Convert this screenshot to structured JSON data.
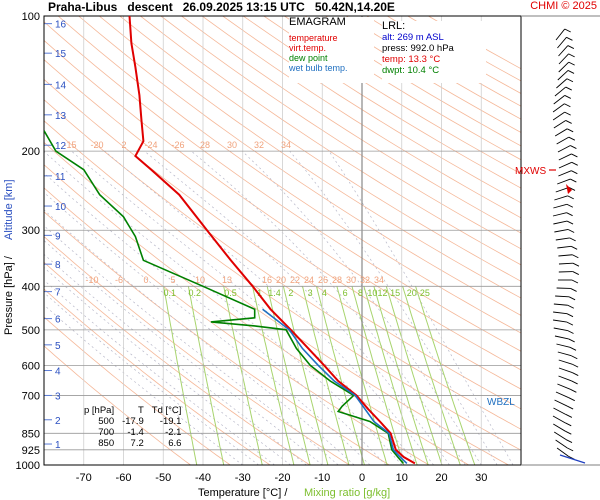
{
  "header": {
    "station": "Praha-Libus",
    "mode": "descent",
    "datetime": "26.09.2025 13:15 UTC",
    "coords": "50.42N,14.20E",
    "copyright": "CHMI © 2025"
  },
  "legend": {
    "title": "EMAGRAM",
    "items": [
      {
        "label": "temperature",
        "color": "#e00000"
      },
      {
        "label": "virt.temp.",
        "color": "#e00000"
      },
      {
        "label": "dew point",
        "color": "#008000"
      },
      {
        "label": "wet bulb temp.",
        "color": "#1f6fc0"
      }
    ]
  },
  "lrl": {
    "title": "LRL:",
    "lines": [
      {
        "text": "alt: 269 m ASL",
        "color": "#0000cc"
      },
      {
        "text": "press: 992.0 hPa",
        "color": "#000000"
      },
      {
        "text": "temp: 13.3 °C",
        "color": "#e00000"
      },
      {
        "text": "dwpt: 10.4 °C",
        "color": "#008000"
      }
    ]
  },
  "table": {
    "headers": [
      "p [hPa]",
      "T",
      "Td [°C]"
    ],
    "rows": [
      [
        "500",
        "-17.9",
        "-19.1"
      ],
      [
        "700",
        "-1.4",
        "-2.1"
      ],
      [
        "850",
        "7.2",
        "6.6"
      ]
    ]
  },
  "wind_labels": {
    "mxws": "MXWS",
    "wbzl": "WBZL"
  },
  "chart_data": {
    "type": "line",
    "diagram": "emagram",
    "xlabel": "Temperature [°C]",
    "xlabel2": "Mixing ratio [g/kg]",
    "ylabel": "Pressure [hPa]",
    "ylabel2": "Altitude [km]",
    "xlim": [
      -80,
      40
    ],
    "ylim": [
      1000,
      100
    ],
    "y_scale": "log",
    "x_ticks": [
      -70,
      -60,
      -50,
      -40,
      -30,
      -20,
      -10,
      0,
      10,
      20,
      30
    ],
    "pressure_ticks": [
      100,
      200,
      300,
      400,
      500,
      600,
      700,
      850,
      925,
      1000
    ],
    "altitude_ticks": [
      {
        "km": 1,
        "p": 898
      },
      {
        "km": 2,
        "p": 793
      },
      {
        "km": 3,
        "p": 700
      },
      {
        "km": 4,
        "p": 616
      },
      {
        "km": 5,
        "p": 540
      },
      {
        "km": 6,
        "p": 472
      },
      {
        "km": 7,
        "p": 411
      },
      {
        "km": 8,
        "p": 357
      },
      {
        "km": 9,
        "p": 308
      },
      {
        "km": 10,
        "p": 265
      },
      {
        "km": 11,
        "p": 227
      },
      {
        "km": 12,
        "p": 194
      },
      {
        "km": 13,
        "p": 166
      },
      {
        "km": 14,
        "p": 142
      },
      {
        "km": 15,
        "p": 121
      },
      {
        "km": 16,
        "p": 104
      }
    ],
    "mixing_ratio_labels": [
      "0.1",
      "0.2",
      "0.5",
      "1",
      "1.4",
      "2",
      "3",
      "4",
      "6",
      "8",
      "10",
      "12",
      "15",
      "20",
      "25"
    ],
    "isotherm_labels_upper": [
      "-15",
      "-20",
      "2",
      "-24",
      "-26",
      "28",
      "30",
      "32",
      "34"
    ],
    "isotherm_labels_mid": [
      "-10",
      "-6",
      "0",
      "5",
      "10",
      "13",
      "16",
      "20",
      "22",
      "24",
      "26",
      "28",
      "30",
      "32",
      "34"
    ],
    "series": [
      {
        "name": "temperature",
        "color": "#e00000",
        "points": [
          [
            13.3,
            992
          ],
          [
            10.5,
            960
          ],
          [
            8.5,
            925
          ],
          [
            7.2,
            850
          ],
          [
            4.5,
            800
          ],
          [
            1.5,
            750
          ],
          [
            -1.4,
            700
          ],
          [
            -6,
            650
          ],
          [
            -9.5,
            600
          ],
          [
            -13.5,
            550
          ],
          [
            -17.9,
            500
          ],
          [
            -23,
            450
          ],
          [
            -27.5,
            400
          ],
          [
            -33,
            350
          ],
          [
            -39,
            300
          ],
          [
            -46,
            250
          ],
          [
            -53,
            220
          ],
          [
            -57,
            205
          ],
          [
            -55,
            190
          ],
          [
            -55.5,
            170
          ],
          [
            -56,
            150
          ],
          [
            -57,
            130
          ],
          [
            -58,
            115
          ],
          [
            -58.5,
            100
          ]
        ]
      },
      {
        "name": "dew point",
        "color": "#008000",
        "points": [
          [
            10.4,
            992
          ],
          [
            9,
            960
          ],
          [
            7.5,
            925
          ],
          [
            6.6,
            850
          ],
          [
            2,
            800
          ],
          [
            -6,
            760
          ],
          [
            -5,
            740
          ],
          [
            -2.1,
            700
          ],
          [
            -8,
            650
          ],
          [
            -13,
            600
          ],
          [
            -16.5,
            550
          ],
          [
            -19.1,
            500
          ],
          [
            -27,
            490
          ],
          [
            -38,
            480
          ],
          [
            -27,
            470
          ],
          [
            -27,
            450
          ],
          [
            -40,
            400
          ],
          [
            -55,
            350
          ],
          [
            -57,
            310
          ],
          [
            -60,
            280
          ],
          [
            -66,
            250
          ],
          [
            -70,
            220
          ],
          [
            -77,
            200
          ],
          [
            -80,
            180
          ]
        ]
      },
      {
        "name": "wet bulb temp.",
        "color": "#1f6fc0",
        "points": [
          [
            11.3,
            992
          ],
          [
            9.6,
            960
          ],
          [
            7.9,
            925
          ],
          [
            6.8,
            850
          ],
          [
            3,
            800
          ],
          [
            -1.7,
            700
          ],
          [
            -7,
            650
          ],
          [
            -11,
            600
          ],
          [
            -15,
            550
          ],
          [
            -18.3,
            500
          ],
          [
            -25,
            450
          ]
        ]
      }
    ]
  }
}
